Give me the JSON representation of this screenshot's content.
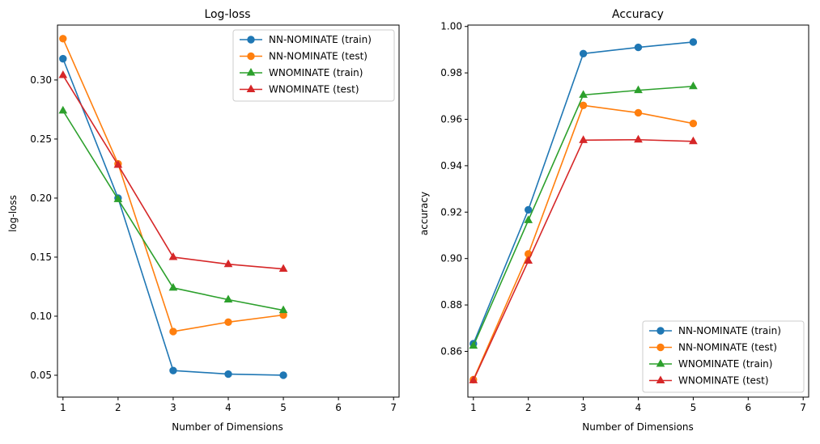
{
  "chart_data": [
    {
      "type": "line",
      "title": "Log-loss",
      "xlabel": "Number of Dimensions",
      "ylabel": "log-loss",
      "xlim": [
        0.9,
        7.1
      ],
      "ylim": [
        0.0315,
        0.3465
      ],
      "xticks": [
        1,
        2,
        3,
        4,
        5,
        6,
        7
      ],
      "xtick_labels": [
        "1",
        "2",
        "3",
        "4",
        "5",
        "6",
        "7"
      ],
      "yticks": [
        0.05,
        0.1,
        0.15,
        0.2,
        0.25,
        0.3
      ],
      "ytick_labels": [
        "0.05",
        "0.10",
        "0.15",
        "0.20",
        "0.25",
        "0.30"
      ],
      "grid": false,
      "legend_position": "top-right",
      "x": [
        1,
        2,
        3,
        4,
        5
      ],
      "series": [
        {
          "name": "NN-NOMINATE (train)",
          "color": "#1f77b4",
          "marker": "circle",
          "values": [
            0.318,
            0.2,
            0.054,
            0.051,
            0.05
          ]
        },
        {
          "name": "NN-NOMINATE (test)",
          "color": "#ff7f0e",
          "marker": "circle",
          "values": [
            0.335,
            0.229,
            0.087,
            0.095,
            0.101
          ]
        },
        {
          "name": "WNOMINATE (train)",
          "color": "#2ca02c",
          "marker": "triangle",
          "values": [
            0.274,
            0.199,
            0.124,
            0.114,
            0.105
          ]
        },
        {
          "name": "WNOMINATE (test)",
          "color": "#d62728",
          "marker": "triangle",
          "values": [
            0.304,
            0.228,
            0.15,
            0.144,
            0.14
          ]
        }
      ]
    },
    {
      "type": "line",
      "title": "Accuracy",
      "xlabel": "Number of Dimensions",
      "ylabel": "accuracy",
      "xlim": [
        0.9,
        7.1
      ],
      "ylim": [
        0.8403,
        1.0006
      ],
      "xticks": [
        1,
        2,
        3,
        4,
        5,
        6,
        7
      ],
      "xtick_labels": [
        "1",
        "2",
        "3",
        "4",
        "5",
        "6",
        "7"
      ],
      "yticks": [
        0.86,
        0.88,
        0.9,
        0.92,
        0.94,
        0.96,
        0.98,
        1.0
      ],
      "ytick_labels": [
        "0.86",
        "0.88",
        "0.90",
        "0.92",
        "0.94",
        "0.96",
        "0.98",
        "1.00"
      ],
      "grid": false,
      "legend_position": "bottom-right",
      "x": [
        1,
        2,
        3,
        4,
        5
      ],
      "series": [
        {
          "name": "NN-NOMINATE (train)",
          "color": "#1f77b4",
          "marker": "circle",
          "values": [
            0.8633,
            0.921,
            0.9883,
            0.991,
            0.9933
          ]
        },
        {
          "name": "NN-NOMINATE (test)",
          "color": "#ff7f0e",
          "marker": "circle",
          "values": [
            0.8478,
            0.902,
            0.966,
            0.9628,
            0.9582
          ]
        },
        {
          "name": "WNOMINATE (train)",
          "color": "#2ca02c",
          "marker": "triangle",
          "values": [
            0.8624,
            0.9165,
            0.9705,
            0.9725,
            0.9742
          ]
        },
        {
          "name": "WNOMINATE (test)",
          "color": "#d62728",
          "marker": "triangle",
          "values": [
            0.8475,
            0.899,
            0.951,
            0.9512,
            0.9505
          ]
        }
      ]
    }
  ]
}
